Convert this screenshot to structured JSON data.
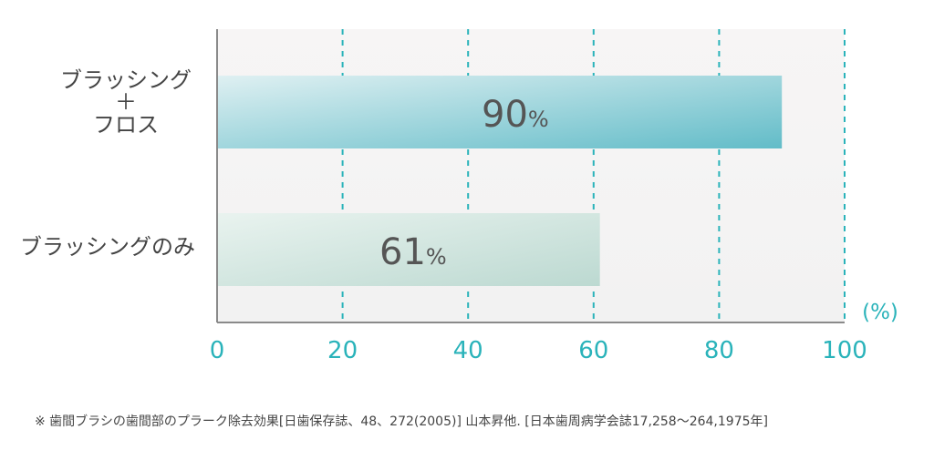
{
  "colors": {
    "axis": "#8a8a8a",
    "grid": "#2ab3ba",
    "tick_label": "#2ab3ba",
    "unit_label": "#2ab3ba",
    "category_label": "#444444",
    "value_label": "#555555",
    "plot_bg_top": "#f7f5f5",
    "plot_bg_bottom": "#f2f2f2",
    "bar1_start": "#dff0f2",
    "bar1_end": "#62bcc8",
    "bar2_start": "#e9f3ef",
    "bar2_end": "#bcd9d1"
  },
  "chart_data": {
    "type": "bar",
    "orientation": "horizontal",
    "categories": [
      "ブラッシング\n＋\nフロス",
      "ブラッシングのみ"
    ],
    "values": [
      90,
      61
    ],
    "value_labels": [
      "90",
      "61"
    ],
    "value_unit": "%",
    "xlim": [
      0,
      100
    ],
    "xticks": [
      0,
      20,
      40,
      60,
      80,
      100
    ],
    "x_unit_label": "(%)",
    "grid": true,
    "grid_style": "dashed-vertical"
  },
  "footnote": "※ 歯間ブラシの歯間部のプラーク除去効果[日歯保存誌、48、272(2005)] 山本昇他. [日本歯周病学会誌17,258〜264,1975年]"
}
